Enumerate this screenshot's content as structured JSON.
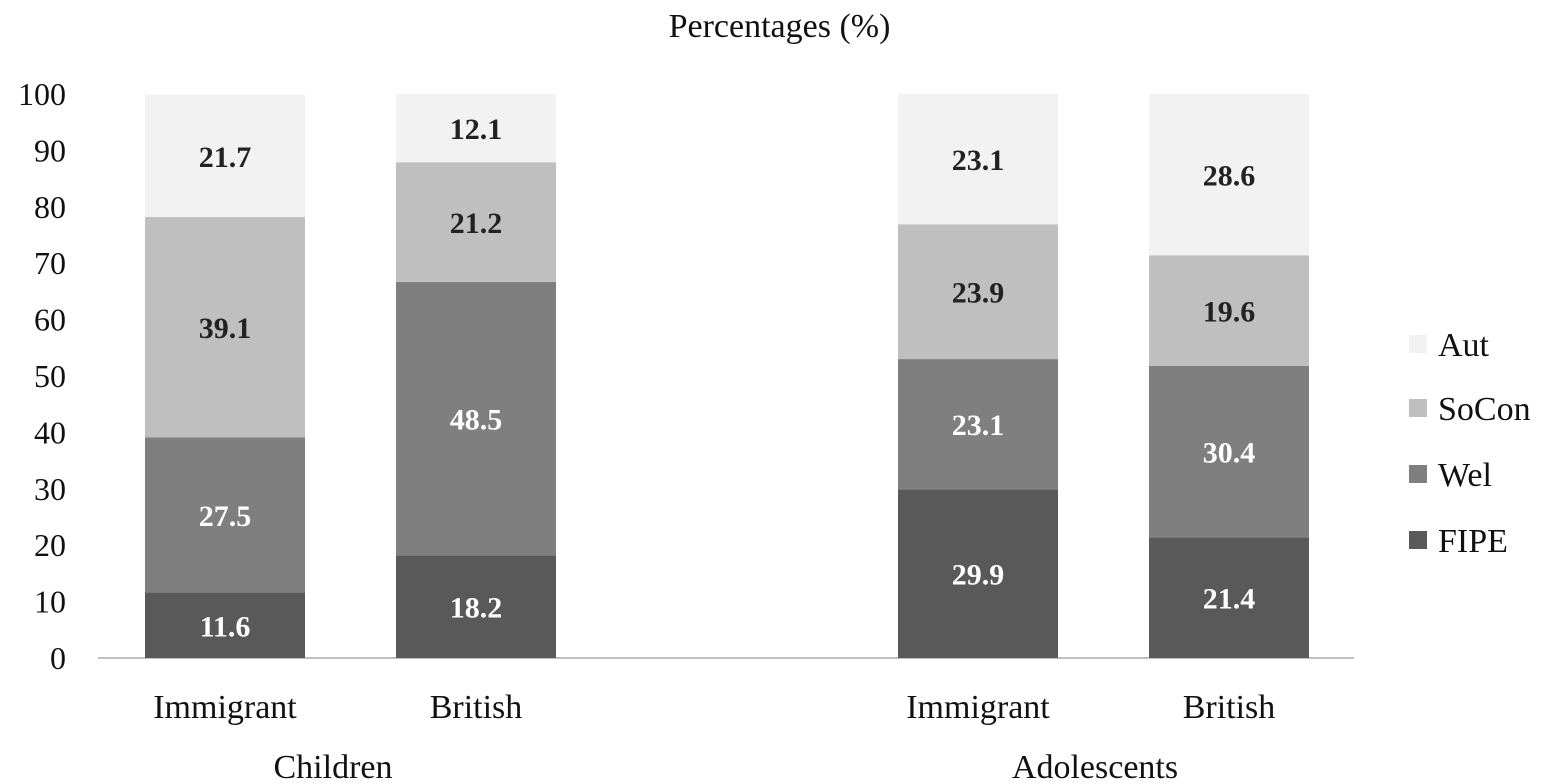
{
  "chart_data": {
    "type": "bar",
    "stacked": true,
    "title": "Percentages (%)",
    "xlabel": "",
    "ylabel": "",
    "ylim": [
      0,
      100
    ],
    "yticks": [
      0,
      10,
      20,
      30,
      40,
      50,
      60,
      70,
      80,
      90,
      100
    ],
    "categories": [
      "Immigrant",
      "British",
      "Immigrant",
      "British"
    ],
    "groups": [
      {
        "label": "Children",
        "categories": [
          0,
          1
        ]
      },
      {
        "label": "Adolescents",
        "categories": [
          2,
          3
        ]
      }
    ],
    "series": [
      {
        "name": "FIPE",
        "color": "#595959",
        "label_color": "#ffffff",
        "values": [
          11.6,
          18.2,
          29.9,
          21.4
        ]
      },
      {
        "name": "Wel",
        "color": "#7f7f7f",
        "label_color": "#ffffff",
        "values": [
          27.5,
          48.5,
          23.1,
          30.4
        ]
      },
      {
        "name": "SoCon",
        "color": "#bfbfbf",
        "label_color": "#222222",
        "values": [
          39.1,
          21.2,
          23.9,
          19.6
        ]
      },
      {
        "name": "Aut",
        "color": "#f2f2f2",
        "label_color": "#222222",
        "values": [
          21.7,
          12.1,
          23.1,
          28.6
        ]
      }
    ],
    "legend": {
      "position": "right",
      "order": [
        "Aut",
        "SoCon",
        "Wel",
        "FIPE"
      ]
    },
    "grid": false
  }
}
